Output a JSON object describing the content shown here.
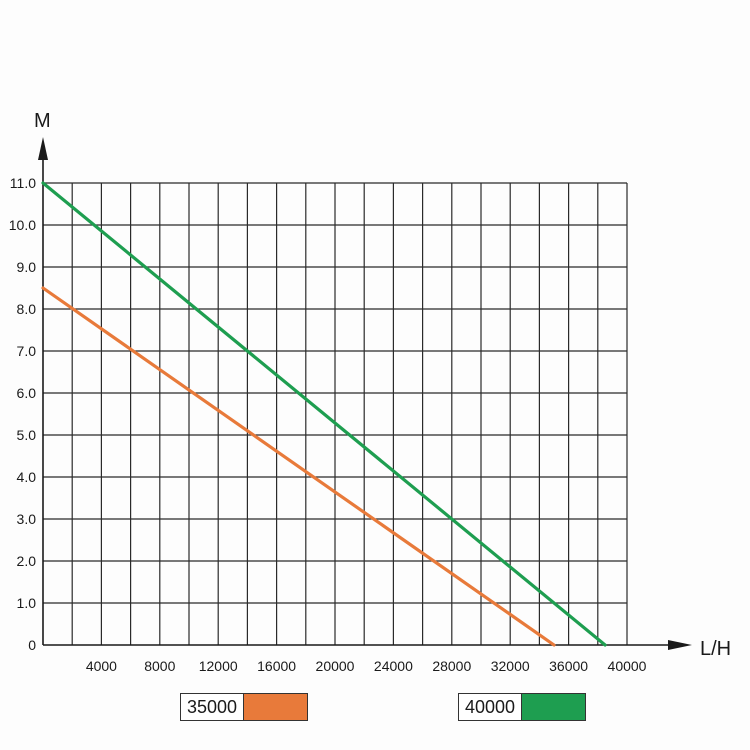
{
  "chart_data": {
    "type": "line",
    "title": "",
    "xlabel": "L/H",
    "ylabel": "M",
    "xlim": [
      0,
      40000
    ],
    "ylim": [
      0,
      11
    ],
    "x_ticks": [
      "4000",
      "8000",
      "12000",
      "16000",
      "20000",
      "24000",
      "28000",
      "32000",
      "36000",
      "40000"
    ],
    "y_ticks": [
      "0",
      "1.0",
      "2.0",
      "3.0",
      "4.0",
      "5.0",
      "6.0",
      "7.0",
      "8.0",
      "9.0",
      "10.0",
      "11.0"
    ],
    "grid": true,
    "legend_position": "bottom",
    "series": [
      {
        "name": "35000",
        "color": "#e87a3a",
        "points": [
          [
            0,
            8.5
          ],
          [
            35000,
            0
          ]
        ]
      },
      {
        "name": "40000",
        "color": "#1e9e50",
        "points": [
          [
            0,
            11.0
          ],
          [
            38500,
            0
          ]
        ]
      }
    ]
  }
}
